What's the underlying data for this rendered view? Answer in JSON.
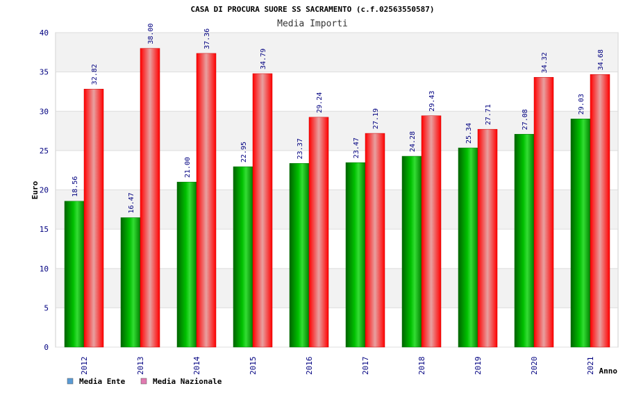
{
  "chart_data": {
    "type": "bar",
    "title": "CASA DI PROCURA SUORE SS SACRAMENTO (c.f.02563550587)",
    "subtitle": "Media Importi",
    "xlabel": "Anno",
    "ylabel": "Euro",
    "ylim": [
      0,
      40
    ],
    "yticks": [
      0,
      5,
      10,
      15,
      20,
      25,
      30,
      35,
      40
    ],
    "grid": true,
    "legend_position": "bottom-left",
    "categories": [
      "2012",
      "2013",
      "2014",
      "2015",
      "2016",
      "2017",
      "2018",
      "2019",
      "2020",
      "2021"
    ],
    "series": [
      {
        "name": "Media Ente",
        "color": "#00a000",
        "legend_color": "#5a9bd5",
        "values": [
          18.56,
          16.47,
          21.0,
          22.95,
          23.37,
          23.47,
          24.28,
          25.34,
          27.08,
          29.03
        ],
        "labels": [
          "18.56",
          "16.47",
          "21.00",
          "22.95",
          "23.37",
          "23.47",
          "24.28",
          "25.34",
          "27.08",
          "29.03"
        ]
      },
      {
        "name": "Media Nazionale",
        "color": "#ee0000",
        "legend_color": "#e07ab0",
        "values": [
          32.82,
          38.0,
          37.36,
          34.79,
          29.24,
          27.19,
          29.43,
          27.71,
          34.32,
          34.68
        ],
        "labels": [
          "32.82",
          "38.00",
          "37.36",
          "34.79",
          "29.24",
          "27.19",
          "29.43",
          "27.71",
          "34.32",
          "34.68"
        ]
      }
    ]
  }
}
